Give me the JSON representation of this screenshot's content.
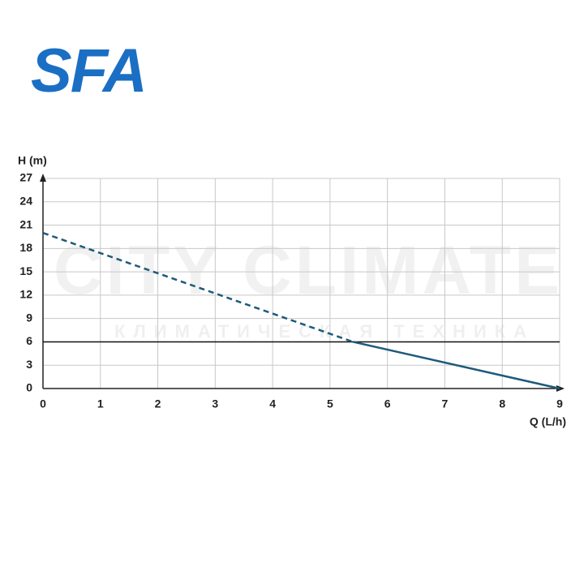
{
  "logo": "SFA",
  "watermark": {
    "main": "CITY CLIMATE",
    "sub": "КЛИМАТИЧЕСКАЯ ТЕХНИКА"
  },
  "chart_data": {
    "type": "line",
    "y_label": "H (m)",
    "x_label": "Q (L/h)",
    "series": [
      {
        "x": [
          0,
          5.4
        ],
        "values": [
          20,
          6
        ],
        "color": "#1d5a7a",
        "dashed": true
      },
      {
        "x": [
          5.4,
          9
        ],
        "values": [
          6,
          0
        ],
        "color": "#1d5a7a",
        "dashed": false
      }
    ],
    "hline": 6,
    "xlim": [
      0,
      9
    ],
    "xticks": [
      0,
      1,
      2,
      3,
      4,
      5,
      6,
      7,
      8,
      9
    ],
    "ylim": [
      0,
      27
    ],
    "yticks": [
      0,
      3,
      6,
      9,
      12,
      15,
      18,
      21,
      24,
      27
    ],
    "grid": true
  }
}
